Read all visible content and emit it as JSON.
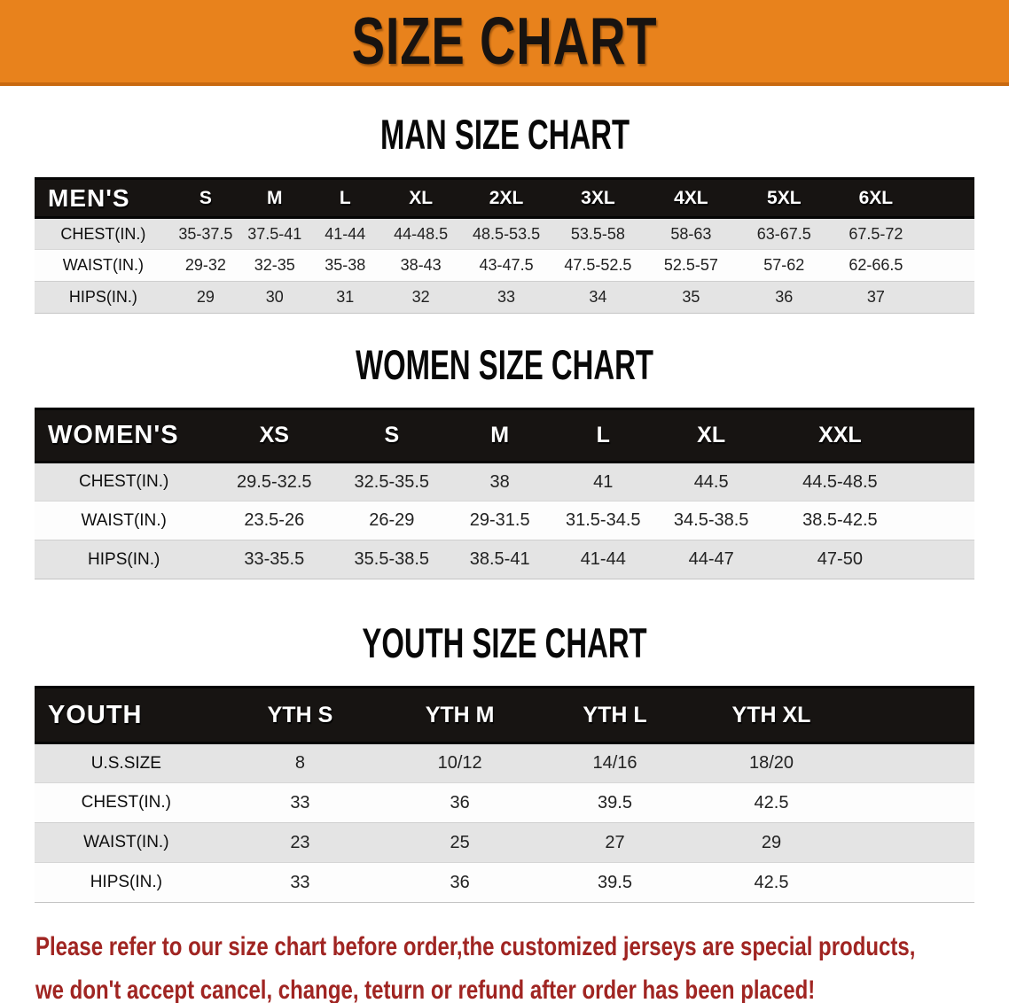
{
  "banner": {
    "title": "SIZE CHART",
    "bg_color": "#e8821c",
    "text_color": "#181310"
  },
  "sections": [
    {
      "heading": "MAN SIZE CHART",
      "corner_label": "MEN'S",
      "columns": [
        "S",
        "M",
        "L",
        "XL",
        "2XL",
        "3XL",
        "4XL",
        "5XL",
        "6XL"
      ],
      "rows": [
        {
          "label": "CHEST(IN.)",
          "values": [
            "35-37.5",
            "37.5-41",
            "41-44",
            "44-48.5",
            "48.5-53.5",
            "53.5-58",
            "58-63",
            "63-67.5",
            "67.5-72"
          ]
        },
        {
          "label": "WAIST(IN.)",
          "values": [
            "29-32",
            "32-35",
            "35-38",
            "38-43",
            "43-47.5",
            "47.5-52.5",
            "52.5-57",
            "57-62",
            "62-66.5"
          ]
        },
        {
          "label": "HIPS(IN.)",
          "values": [
            "29",
            "30",
            "31",
            "32",
            "33",
            "34",
            "35",
            "36",
            "37"
          ]
        }
      ]
    },
    {
      "heading": "WOMEN SIZE CHART",
      "corner_label": "WOMEN'S",
      "columns": [
        "XS",
        "S",
        "M",
        "L",
        "XL",
        "XXL"
      ],
      "rows": [
        {
          "label": "CHEST(IN.)",
          "values": [
            "29.5-32.5",
            "32.5-35.5",
            "38",
            "41",
            "44.5",
            "44.5-48.5"
          ]
        },
        {
          "label": "WAIST(IN.)",
          "values": [
            "23.5-26",
            "26-29",
            "29-31.5",
            "31.5-34.5",
            "34.5-38.5",
            "38.5-42.5"
          ]
        },
        {
          "label": "HIPS(IN.)",
          "values": [
            "33-35.5",
            "35.5-38.5",
            "38.5-41",
            "41-44",
            "44-47",
            "47-50"
          ]
        }
      ]
    },
    {
      "heading": "YOUTH SIZE CHART",
      "corner_label": "YOUTH",
      "columns": [
        "YTH S",
        "YTH M",
        "YTH L",
        "YTH XL"
      ],
      "rows": [
        {
          "label": "U.S.SIZE",
          "values": [
            "8",
            "10/12",
            "14/16",
            "18/20"
          ]
        },
        {
          "label": "CHEST(IN.)",
          "values": [
            "33",
            "36",
            "39.5",
            "42.5"
          ]
        },
        {
          "label": "WAIST(IN.)",
          "values": [
            "23",
            "25",
            "27",
            "29"
          ]
        },
        {
          "label": "HIPS(IN.)",
          "values": [
            "33",
            "36",
            "39.5",
            "42.5"
          ]
        }
      ]
    }
  ],
  "disclaimer": {
    "line1": "Please refer to our size chart before order,the customized jerseys are special products,",
    "line2": "we don't accept cancel, change, teturn or refund after order has been placed!",
    "color": "#a02522"
  },
  "table_colors": {
    "header_bar": "#171412",
    "header_text": "#ffffff",
    "shaded_row": "#e4e4e4",
    "plain_row": "#fdfdfd"
  }
}
